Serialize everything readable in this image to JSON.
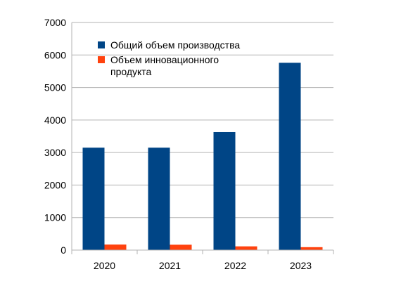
{
  "chart_data": {
    "type": "bar",
    "categories": [
      "2020",
      "2021",
      "2022",
      "2023"
    ],
    "series": [
      {
        "name": "Общий объем производства",
        "values": [
          3150,
          3150,
          3630,
          5760
        ],
        "color": "#004586"
      },
      {
        "name": "Объем инновационного продукта",
        "values": [
          170,
          165,
          115,
          90
        ],
        "color": "#ff420e"
      }
    ],
    "ylim": [
      0,
      7000
    ],
    "y_ticks": [
      0,
      1000,
      2000,
      3000,
      4000,
      5000,
      6000,
      7000
    ],
    "grid": true,
    "legend_position": "top-left inside plot",
    "legend_lines": [
      [
        "Общий объем производства"
      ],
      [
        "Объем инновационного",
        "продукта"
      ]
    ]
  }
}
